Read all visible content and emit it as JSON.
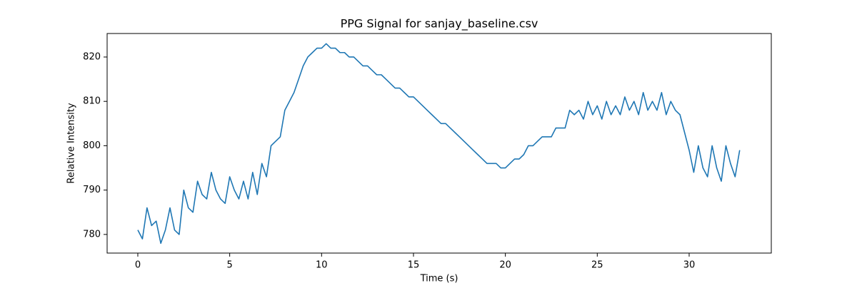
{
  "chart_data": {
    "type": "line",
    "title": "PPG Signal for sanjay_baseline.csv",
    "x_label": "Time (s)",
    "y_label": "Relative Intensity",
    "x": [
      0,
      0.25,
      0.5,
      0.75,
      1,
      1.25,
      1.5,
      1.75,
      2,
      2.25,
      2.5,
      2.75,
      3,
      3.25,
      3.5,
      3.75,
      4,
      4.25,
      4.5,
      4.75,
      5,
      5.25,
      5.5,
      5.75,
      6,
      6.25,
      6.5,
      6.75,
      7,
      7.25,
      7.5,
      7.75,
      8,
      8.25,
      8.5,
      8.75,
      9,
      9.25,
      9.5,
      9.75,
      10,
      10.25,
      10.5,
      10.75,
      11,
      11.25,
      11.5,
      11.75,
      12,
      12.25,
      12.5,
      12.75,
      13,
      13.25,
      13.5,
      13.75,
      14,
      14.25,
      14.5,
      14.75,
      15,
      15.25,
      15.5,
      15.75,
      16,
      16.25,
      16.5,
      16.75,
      17,
      17.25,
      17.5,
      17.75,
      18,
      18.25,
      18.5,
      18.75,
      19,
      19.25,
      19.5,
      19.75,
      20,
      20.25,
      20.5,
      20.75,
      21,
      21.25,
      21.5,
      21.75,
      22,
      22.25,
      22.5,
      22.75,
      23,
      23.25,
      23.5,
      23.75,
      24,
      24.25,
      24.5,
      24.75,
      25,
      25.25,
      25.5,
      25.75,
      26,
      26.25,
      26.5,
      26.75,
      27,
      27.25,
      27.5,
      27.75,
      28,
      28.25,
      28.5,
      28.75,
      29,
      29.25,
      29.5,
      29.75,
      30,
      30.25,
      30.5,
      30.75,
      31,
      31.25,
      31.5,
      31.75,
      32,
      32.25,
      32.5,
      32.75
    ],
    "series": [
      {
        "name": "PPG",
        "color": "#1f77b4",
        "values": [
          781,
          779,
          786,
          782,
          783,
          778,
          781,
          786,
          781,
          780,
          790,
          786,
          785,
          792,
          789,
          788,
          794,
          790,
          788,
          787,
          793,
          790,
          788,
          792,
          788,
          794,
          789,
          796,
          793,
          800,
          801,
          802,
          808,
          810,
          812,
          815,
          818,
          820,
          821,
          822,
          822,
          823,
          822,
          822,
          821,
          821,
          820,
          820,
          819,
          818,
          818,
          817,
          816,
          816,
          815,
          814,
          813,
          813,
          812,
          811,
          811,
          810,
          809,
          808,
          807,
          806,
          805,
          805,
          804,
          803,
          802,
          801,
          800,
          799,
          798,
          797,
          796,
          796,
          796,
          795,
          795,
          796,
          797,
          797,
          798,
          800,
          800,
          801,
          802,
          802,
          802,
          804,
          804,
          804,
          808,
          807,
          808,
          806,
          810,
          807,
          809,
          806,
          810,
          807,
          809,
          807,
          811,
          808,
          810,
          807,
          812,
          808,
          810,
          808,
          812,
          807,
          810,
          808,
          807,
          803,
          799,
          794,
          800,
          795,
          793,
          800,
          795,
          792,
          800,
          796,
          793,
          799
        ]
      }
    ],
    "xlim": [
      -1.67,
      34.47
    ],
    "ylim": [
      775.8,
      825.3
    ],
    "xticks": [
      0,
      5,
      10,
      15,
      20,
      25,
      30
    ],
    "yticks": [
      780,
      790,
      800,
      810,
      820
    ]
  }
}
